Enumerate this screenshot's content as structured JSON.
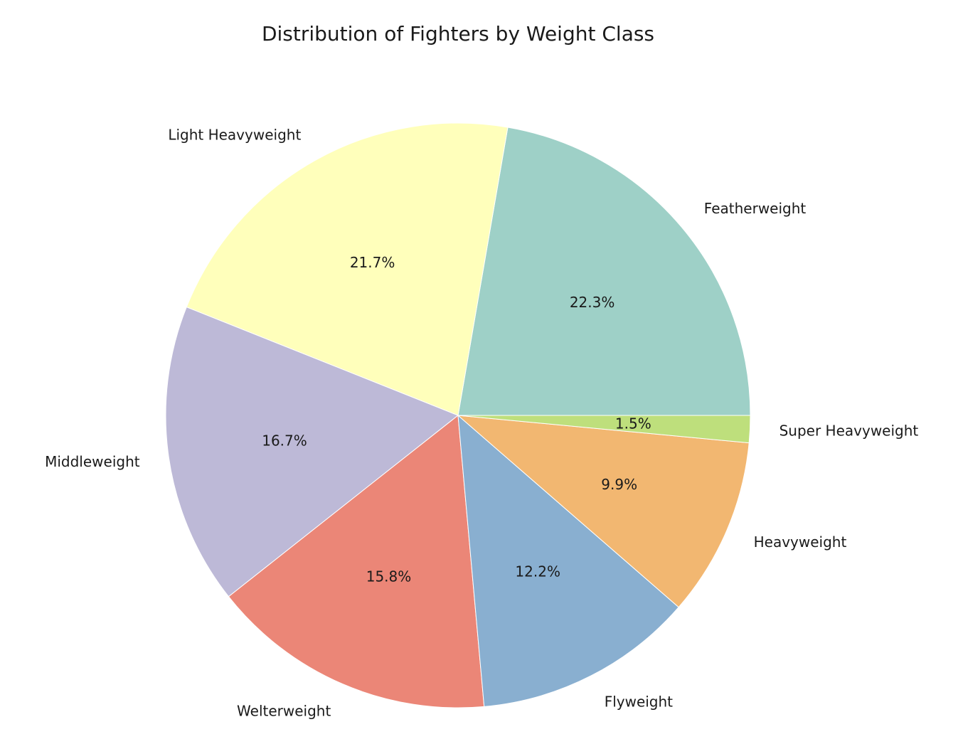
{
  "chart_data": {
    "type": "pie",
    "title": "Distribution of Fighters by Weight Class",
    "start_angle_deg": 0,
    "direction": "counterclockwise",
    "slices": [
      {
        "label": "Featherweight",
        "value": 22.3,
        "pct_label": "22.3%",
        "color": "#9ed0c7"
      },
      {
        "label": "Light Heavyweight",
        "value": 21.7,
        "pct_label": "21.7%",
        "color": "#ffffbb"
      },
      {
        "label": "Middleweight",
        "value": 16.7,
        "pct_label": "16.7%",
        "color": "#bdb9d7"
      },
      {
        "label": "Welterweight",
        "value": 15.8,
        "pct_label": "15.8%",
        "color": "#eb8677"
      },
      {
        "label": "Flyweight",
        "value": 12.2,
        "pct_label": "12.2%",
        "color": "#89afd0"
      },
      {
        "label": "Heavyweight",
        "value": 9.9,
        "pct_label": "9.9%",
        "color": "#f2b771"
      },
      {
        "label": "Super Heavyweight",
        "value": 1.5,
        "pct_label": "1.5%",
        "color": "#bedf7c"
      }
    ]
  }
}
